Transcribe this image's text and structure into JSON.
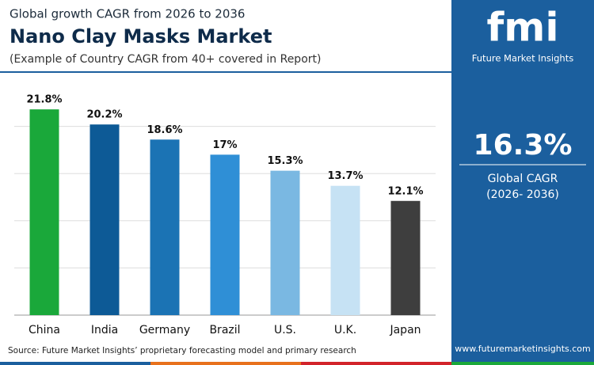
{
  "chart_data": {
    "type": "bar",
    "title": "Nano Clay Masks Market",
    "supertitle": "Global growth CAGR from 2026 to 2036",
    "subtitle": "(Example of Country CAGR from 40+ covered in Report)",
    "source": "Source: Future Market Insights’ proprietary forecasting model and primary research",
    "categories": [
      "China",
      "India",
      "Germany",
      "Brazil",
      "U.S.",
      "U.K.",
      "Japan"
    ],
    "values": [
      21.8,
      20.2,
      18.6,
      17,
      15.3,
      13.7,
      12.1
    ],
    "value_labels": [
      "21.8%",
      "20.2%",
      "18.6%",
      "17%",
      "15.3%",
      "13.7%",
      "12.1%"
    ],
    "colors": [
      "#1aa83a",
      "#0d5a96",
      "#1b73b4",
      "#2f8fd6",
      "#7ab8e2",
      "#c6e2f4",
      "#3e3e3e"
    ],
    "ylim": [
      0,
      25
    ],
    "yticks": [
      0,
      5,
      10,
      15,
      20
    ],
    "grid": true
  },
  "panel": {
    "logo": "fmi",
    "brand": "Future Market Insights",
    "cagr": "16.3%",
    "cagr_label": "Global CAGR",
    "cagr_period": "(2026- 2036)",
    "website": "www.futuremarketinsights.com"
  }
}
